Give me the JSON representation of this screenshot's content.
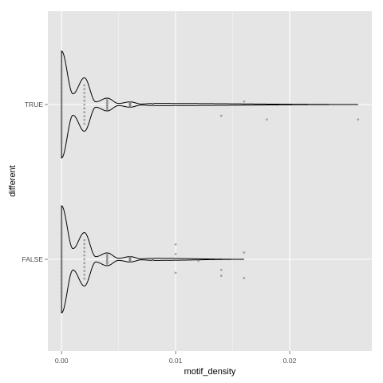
{
  "chart_data": {
    "type": "violin",
    "xlabel": "motif_density",
    "ylabel": "different",
    "xlim": [
      -0.0012,
      0.0272
    ],
    "x_ticks": [
      {
        "value": 0.0,
        "label": "0.00"
      },
      {
        "value": 0.01,
        "label": "0.01"
      },
      {
        "value": 0.02,
        "label": "0.02"
      }
    ],
    "categories": [
      "TRUE",
      "FALSE"
    ],
    "grid": true,
    "colors": {
      "panel_background": "#e5e5e5",
      "grid_major": "#ffffff",
      "grid_minor": "#f2f2f2",
      "violin_outline": "#000000",
      "points": "#7f7f7f"
    },
    "series": [
      {
        "name": "TRUE",
        "violin_max_x": 0.026,
        "density_profile": [
          {
            "x": 0.0,
            "density": 1.0
          },
          {
            "x": 0.001,
            "density": 0.2
          },
          {
            "x": 0.002,
            "density": 0.5
          },
          {
            "x": 0.003,
            "density": 0.05
          },
          {
            "x": 0.004,
            "density": 0.12
          },
          {
            "x": 0.005,
            "density": 0.02
          },
          {
            "x": 0.006,
            "density": 0.05
          },
          {
            "x": 0.007,
            "density": 0.01
          },
          {
            "x": 0.008,
            "density": 0.02
          },
          {
            "x": 0.026,
            "density": 0.0
          }
        ],
        "strip_values": [
          0.0,
          0.002,
          0.004,
          0.006,
          0.008
        ],
        "outliers": [
          {
            "x": 0.014,
            "offset": -0.15
          },
          {
            "x": 0.016,
            "offset": 0.04
          },
          {
            "x": 0.018,
            "offset": -0.2
          },
          {
            "x": 0.026,
            "offset": -0.2
          }
        ]
      },
      {
        "name": "FALSE",
        "violin_max_x": 0.016,
        "density_profile": [
          {
            "x": 0.0,
            "density": 1.0
          },
          {
            "x": 0.001,
            "density": 0.2
          },
          {
            "x": 0.002,
            "density": 0.5
          },
          {
            "x": 0.003,
            "density": 0.05
          },
          {
            "x": 0.004,
            "density": 0.12
          },
          {
            "x": 0.005,
            "density": 0.02
          },
          {
            "x": 0.006,
            "density": 0.05
          },
          {
            "x": 0.007,
            "density": 0.01
          },
          {
            "x": 0.008,
            "density": 0.02
          },
          {
            "x": 0.016,
            "density": 0.0
          }
        ],
        "strip_values": [
          0.0,
          0.002,
          0.004,
          0.006,
          0.008
        ],
        "outliers": [
          {
            "x": 0.01,
            "offset": 0.2
          },
          {
            "x": 0.01,
            "offset": 0.07
          },
          {
            "x": 0.01,
            "offset": -0.18
          },
          {
            "x": 0.012,
            "offset": -0.02
          },
          {
            "x": 0.014,
            "offset": -0.14
          },
          {
            "x": 0.014,
            "offset": -0.22
          },
          {
            "x": 0.016,
            "offset": 0.09
          },
          {
            "x": 0.016,
            "offset": -0.25
          }
        ]
      }
    ]
  }
}
